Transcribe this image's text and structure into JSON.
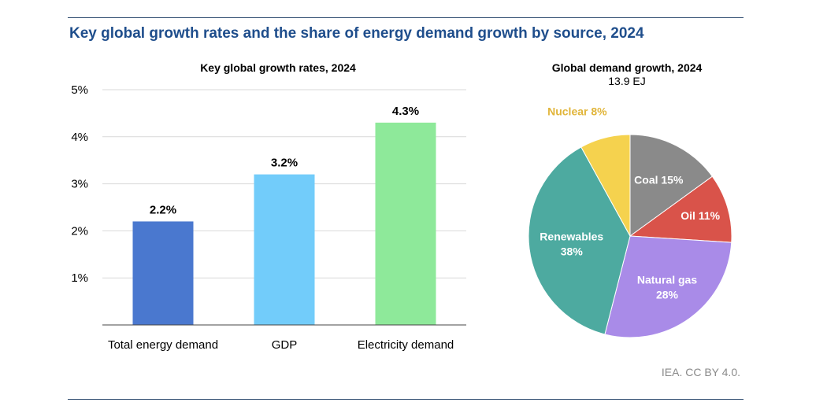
{
  "figure_title": "Key global growth rates and the share of energy demand growth by source, 2024",
  "source": "IEA. CC BY 4.0.",
  "chart_data": [
    {
      "type": "bar",
      "title": "Key global growth rates, 2024",
      "categories": [
        "Total energy demand",
        "GDP",
        "Electricity demand"
      ],
      "values": [
        2.2,
        3.2,
        4.3
      ],
      "data_labels": [
        "2.2%",
        "3.2%",
        "4.3%"
      ],
      "colors": [
        "#4a78cf",
        "#72ccfa",
        "#8ee99a"
      ],
      "ylim": [
        0,
        5
      ],
      "yticks": [
        "1%",
        "2%",
        "3%",
        "4%",
        "5%"
      ],
      "ytick_values": [
        1,
        2,
        3,
        4,
        5
      ],
      "grid": true,
      "grid_color": "#d9d9d9"
    },
    {
      "type": "pie",
      "title": "Global demand growth, 2024",
      "subtitle": "13.9 EJ",
      "slices": [
        {
          "label": "Coal 15%",
          "value": 15,
          "color": "#8a8a8a",
          "text_color": "#ffffff"
        },
        {
          "label": "Oil 11%",
          "value": 11,
          "color": "#d9534a",
          "text_color": "#ffffff"
        },
        {
          "label": "Natural gas\n28%",
          "value": 28,
          "color": "#a98be8",
          "text_color": "#ffffff"
        },
        {
          "label": "Renewables\n38%",
          "value": 38,
          "color": "#4daaa0",
          "text_color": "#ffffff"
        },
        {
          "label": "Nuclear 8%",
          "value": 8,
          "color": "#f5d24e",
          "text_color": "#e1b53a"
        }
      ]
    }
  ]
}
